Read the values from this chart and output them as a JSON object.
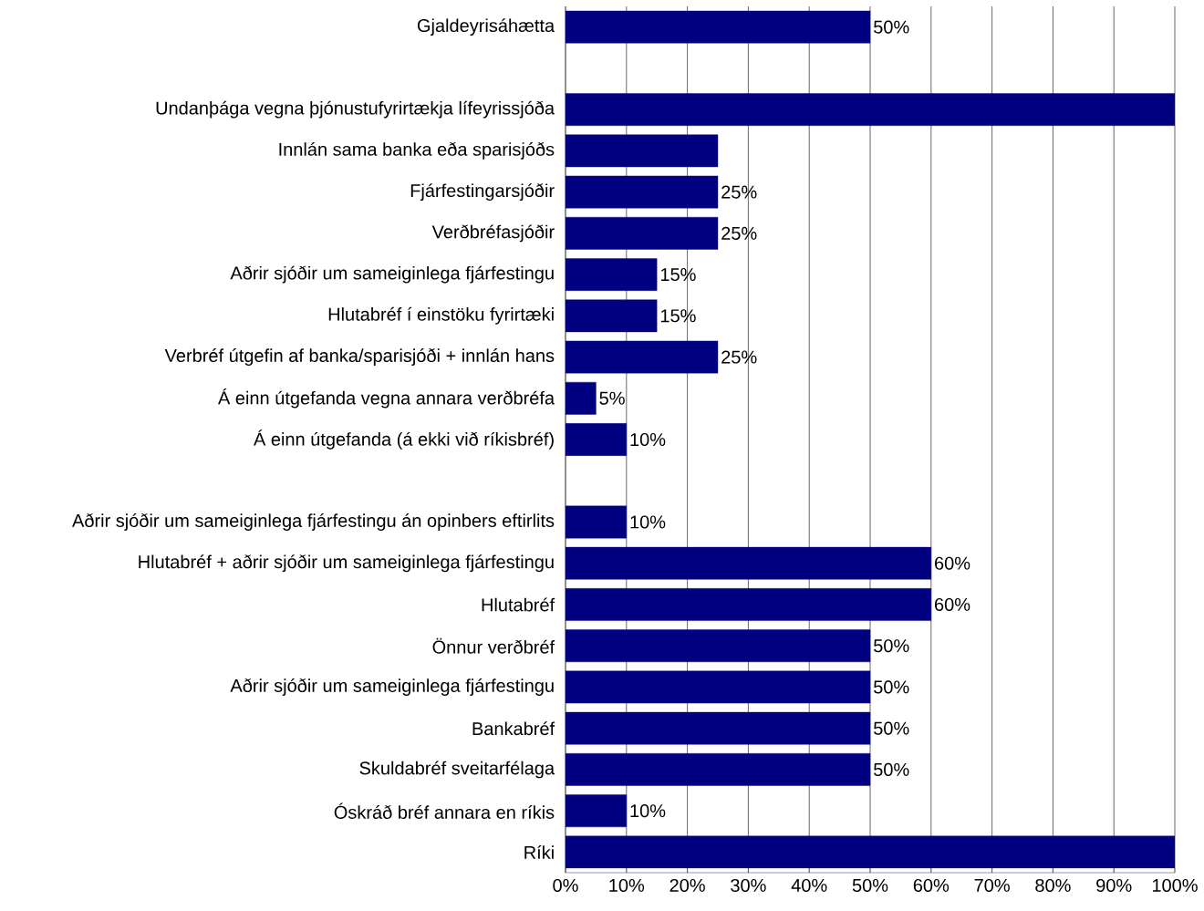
{
  "chart_data": {
    "type": "bar",
    "orientation": "horizontal",
    "color": "#000080",
    "grid": "x",
    "categories": [
      "Gjaldeyrisáhætta",
      null,
      "Undanþága vegna þjónustufyrirtækja lífeyrissjóða",
      "Innlán sama banka eða sparisjóðs",
      "Fjárfestingarsjóðir",
      "Verðbréfasjóðir",
      "Aðrir sjóðir um sameiginlega fjárfestingu",
      "Hlutabréf í einstöku fyrirtæki",
      "Verbréf útgefin af banka/sparisjóði + innlán hans",
      "Á einn útgefanda vegna annara verðbréfa",
      "Á einn útgefanda (á ekki við ríkisbréf)",
      null,
      "Aðrir sjóðir um sameiginlega fjárfestingu án opinbers eftirlits",
      "Hlutabréf + aðrir sjóðir um sameiginlega fjárfestingu",
      "Hlutabréf",
      "Önnur verðbréf",
      "Aðrir sjóðir um sameiginlega fjárfestingu",
      "Bankabréf",
      "Skuldabréf sveitarfélaga",
      "Óskráð bréf annara en ríkis",
      "Ríki"
    ],
    "values": [
      50,
      null,
      100,
      25,
      25,
      25,
      15,
      15,
      25,
      5,
      10,
      null,
      10,
      60,
      60,
      50,
      50,
      50,
      50,
      10,
      100
    ],
    "value_labels": [
      "50%",
      null,
      null,
      null,
      "25%",
      "25%",
      "15%",
      "15%",
      "25%",
      "5%",
      "10%",
      null,
      "10%",
      "60%",
      "60%",
      "50%",
      "50%",
      "50%",
      "50%",
      "10%",
      null
    ],
    "xlim": [
      0,
      100
    ],
    "xticks": [
      {
        "value": 0,
        "label": "0%"
      },
      {
        "value": 10,
        "label": "10%"
      },
      {
        "value": 20,
        "label": "20%"
      },
      {
        "value": 30,
        "label": "30%"
      },
      {
        "value": 40,
        "label": "40%"
      },
      {
        "value": 50,
        "label": "50%"
      },
      {
        "value": 60,
        "label": "60%"
      },
      {
        "value": 70,
        "label": "70%"
      },
      {
        "value": 80,
        "label": "80%"
      },
      {
        "value": 90,
        "label": "90%"
      },
      {
        "value": 100,
        "label": "100%"
      }
    ]
  }
}
